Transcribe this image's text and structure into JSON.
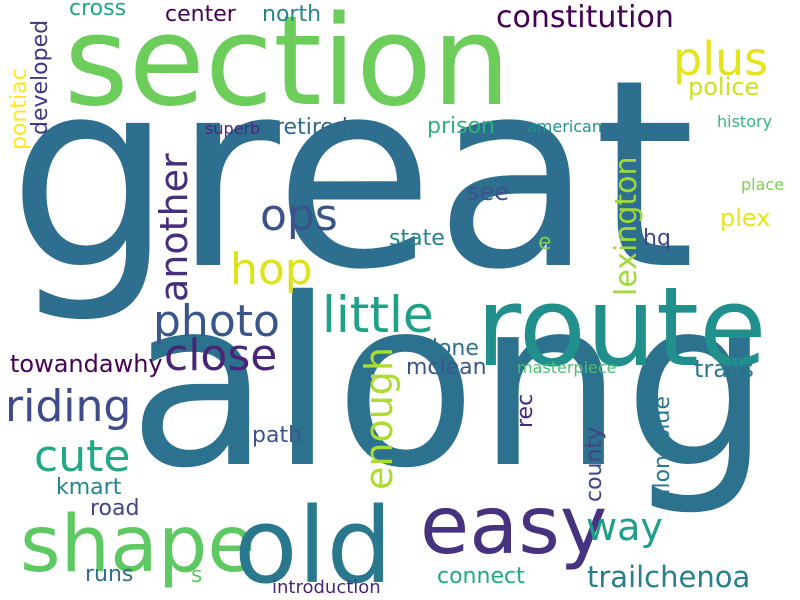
{
  "words": [
    {
      "text": "great",
      "color": "#2e6e8e"
    },
    {
      "text": "along",
      "color": "#2c728e"
    },
    {
      "text": "section",
      "color": "#6ccd5a"
    },
    {
      "text": "route",
      "color": "#21908d"
    },
    {
      "text": "shape",
      "color": "#5ec962"
    },
    {
      "text": "old",
      "color": "#2a788e"
    },
    {
      "text": "easy",
      "color": "#46327e"
    },
    {
      "text": "constitution",
      "color": "#440154"
    },
    {
      "text": "plus",
      "color": "#e5e419"
    },
    {
      "text": "police",
      "color": "#cde11d"
    },
    {
      "text": "photo",
      "color": "#39568c"
    },
    {
      "text": "little",
      "color": "#1fa187"
    },
    {
      "text": "close",
      "color": "#482576"
    },
    {
      "text": "hop",
      "color": "#dde318"
    },
    {
      "text": "ops",
      "color": "#3b528b"
    },
    {
      "text": "riding",
      "color": "#3e4a89"
    },
    {
      "text": "cute",
      "color": "#22a884"
    },
    {
      "text": "another",
      "color": "#472d7b"
    },
    {
      "text": "enough",
      "color": "#addc30"
    },
    {
      "text": "way",
      "color": "#1f9e89"
    },
    {
      "text": "trailchenoa",
      "color": "#277f8e"
    },
    {
      "text": "lexington",
      "color": "#a0da39"
    },
    {
      "text": "alongside",
      "color": "#2a788e"
    },
    {
      "text": "county",
      "color": "#414487"
    },
    {
      "text": "towandawhy",
      "color": "#440154"
    },
    {
      "text": "developed",
      "color": "#453781"
    },
    {
      "text": "pontiac",
      "color": "#fde725"
    },
    {
      "text": "cross",
      "color": "#20a386"
    },
    {
      "text": "center",
      "color": "#440154"
    },
    {
      "text": "north",
      "color": "#25858e"
    },
    {
      "text": "retired",
      "color": "#31688e"
    },
    {
      "text": "prison",
      "color": "#2db27d"
    },
    {
      "text": "superb",
      "color": "#482878"
    },
    {
      "text": "american",
      "color": "#21918c"
    },
    {
      "text": "history",
      "color": "#35b779"
    },
    {
      "text": "place",
      "color": "#7ad151"
    },
    {
      "text": "see",
      "color": "#3b528b"
    },
    {
      "text": "plex",
      "color": "#e7e419"
    },
    {
      "text": "state",
      "color": "#26828e"
    },
    {
      "text": "e",
      "color": "#7ad151"
    },
    {
      "text": "hq",
      "color": "#404688"
    },
    {
      "text": "done",
      "color": "#2c728e"
    },
    {
      "text": "mclean",
      "color": "#39568c"
    },
    {
      "text": "masterpiece",
      "color": "#4ac16d"
    },
    {
      "text": "trails",
      "color": "#2a788e"
    },
    {
      "text": "rec",
      "color": "#482878"
    },
    {
      "text": "path",
      "color": "#3b528b"
    },
    {
      "text": "kmart",
      "color": "#25858e"
    },
    {
      "text": "road",
      "color": "#404688"
    },
    {
      "text": "runs",
      "color": "#2e6e8e"
    },
    {
      "text": "s",
      "color": "#5ec962"
    },
    {
      "text": "introduction",
      "color": "#482677"
    },
    {
      "text": "connect",
      "color": "#22a884"
    }
  ]
}
